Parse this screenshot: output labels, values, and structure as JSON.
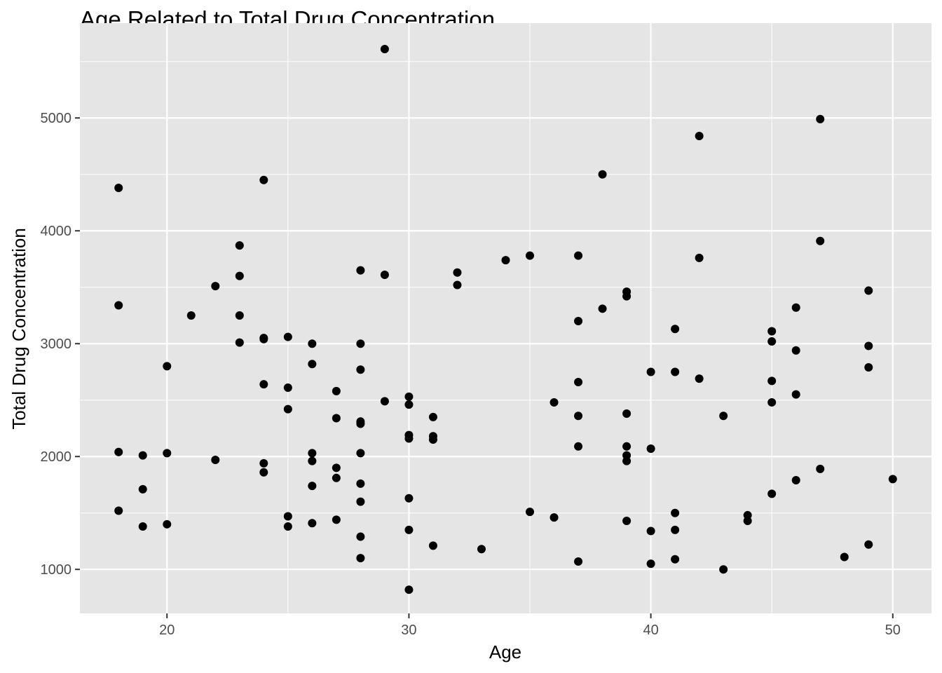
{
  "chart_data": {
    "type": "scatter",
    "title": "Age Related to Total Drug Concentration",
    "xlabel": "Age",
    "ylabel": "Total Drug Concentration",
    "xlim": [
      16.4,
      51.6
    ],
    "ylim": [
      610,
      5840
    ],
    "x_major_ticks": [
      20,
      30,
      40,
      50
    ],
    "y_major_ticks": [
      1000,
      2000,
      3000,
      4000,
      5000
    ],
    "x_minor_ticks": [
      25,
      35,
      45
    ],
    "y_minor_ticks": [
      1500,
      2500,
      3500,
      4500,
      5500
    ],
    "grid": true,
    "legend": "none",
    "colors": {
      "panel": "#e5e5e5",
      "grid": "#ffffff",
      "point": "#000000",
      "tick_text": "#4d4d4d",
      "tick_mark": "#333333"
    },
    "points": [
      {
        "x": 18,
        "y": 4380
      },
      {
        "x": 18,
        "y": 3340
      },
      {
        "x": 18,
        "y": 2040
      },
      {
        "x": 18,
        "y": 1520
      },
      {
        "x": 19,
        "y": 2010
      },
      {
        "x": 19,
        "y": 1710
      },
      {
        "x": 19,
        "y": 1380
      },
      {
        "x": 20,
        "y": 2800
      },
      {
        "x": 20,
        "y": 2030
      },
      {
        "x": 20,
        "y": 1400
      },
      {
        "x": 21,
        "y": 3250
      },
      {
        "x": 22,
        "y": 3510
      },
      {
        "x": 22,
        "y": 1970
      },
      {
        "x": 23,
        "y": 3870
      },
      {
        "x": 23,
        "y": 3600
      },
      {
        "x": 23,
        "y": 3250
      },
      {
        "x": 23,
        "y": 3010
      },
      {
        "x": 24,
        "y": 4450
      },
      {
        "x": 24,
        "y": 3050
      },
      {
        "x": 24,
        "y": 3040
      },
      {
        "x": 24,
        "y": 2640
      },
      {
        "x": 24,
        "y": 1940
      },
      {
        "x": 24,
        "y": 1860
      },
      {
        "x": 25,
        "y": 3060
      },
      {
        "x": 25,
        "y": 2610
      },
      {
        "x": 25,
        "y": 2420
      },
      {
        "x": 25,
        "y": 1470
      },
      {
        "x": 25,
        "y": 1380
      },
      {
        "x": 26,
        "y": 3000
      },
      {
        "x": 26,
        "y": 2820
      },
      {
        "x": 26,
        "y": 2030
      },
      {
        "x": 26,
        "y": 1960
      },
      {
        "x": 26,
        "y": 1740
      },
      {
        "x": 26,
        "y": 1410
      },
      {
        "x": 27,
        "y": 2580
      },
      {
        "x": 27,
        "y": 2340
      },
      {
        "x": 27,
        "y": 1900
      },
      {
        "x": 27,
        "y": 1810
      },
      {
        "x": 27,
        "y": 1440
      },
      {
        "x": 28,
        "y": 3650
      },
      {
        "x": 28,
        "y": 3000
      },
      {
        "x": 28,
        "y": 2770
      },
      {
        "x": 28,
        "y": 2310
      },
      {
        "x": 28,
        "y": 2290
      },
      {
        "x": 28,
        "y": 2030
      },
      {
        "x": 28,
        "y": 1760
      },
      {
        "x": 28,
        "y": 1600
      },
      {
        "x": 28,
        "y": 1290
      },
      {
        "x": 28,
        "y": 1100
      },
      {
        "x": 29,
        "y": 5610
      },
      {
        "x": 29,
        "y": 3610
      },
      {
        "x": 29,
        "y": 2490
      },
      {
        "x": 30,
        "y": 2530
      },
      {
        "x": 30,
        "y": 2460
      },
      {
        "x": 30,
        "y": 2190
      },
      {
        "x": 30,
        "y": 2160
      },
      {
        "x": 30,
        "y": 1630
      },
      {
        "x": 30,
        "y": 1350
      },
      {
        "x": 30,
        "y": 820
      },
      {
        "x": 31,
        "y": 2350
      },
      {
        "x": 31,
        "y": 2180
      },
      {
        "x": 31,
        "y": 2150
      },
      {
        "x": 31,
        "y": 1210
      },
      {
        "x": 32,
        "y": 3630
      },
      {
        "x": 32,
        "y": 3520
      },
      {
        "x": 33,
        "y": 1180
      },
      {
        "x": 34,
        "y": 3740
      },
      {
        "x": 35,
        "y": 3780
      },
      {
        "x": 35,
        "y": 1510
      },
      {
        "x": 36,
        "y": 2480
      },
      {
        "x": 36,
        "y": 1460
      },
      {
        "x": 37,
        "y": 3780
      },
      {
        "x": 37,
        "y": 3200
      },
      {
        "x": 37,
        "y": 2660
      },
      {
        "x": 37,
        "y": 2360
      },
      {
        "x": 37,
        "y": 2090
      },
      {
        "x": 37,
        "y": 1070
      },
      {
        "x": 38,
        "y": 4500
      },
      {
        "x": 38,
        "y": 3310
      },
      {
        "x": 39,
        "y": 3460
      },
      {
        "x": 39,
        "y": 3420
      },
      {
        "x": 39,
        "y": 2380
      },
      {
        "x": 39,
        "y": 2090
      },
      {
        "x": 39,
        "y": 2010
      },
      {
        "x": 39,
        "y": 1960
      },
      {
        "x": 39,
        "y": 1430
      },
      {
        "x": 40,
        "y": 2750
      },
      {
        "x": 40,
        "y": 2070
      },
      {
        "x": 40,
        "y": 1340
      },
      {
        "x": 40,
        "y": 1050
      },
      {
        "x": 41,
        "y": 3130
      },
      {
        "x": 41,
        "y": 2750
      },
      {
        "x": 41,
        "y": 1500
      },
      {
        "x": 41,
        "y": 1350
      },
      {
        "x": 41,
        "y": 1090
      },
      {
        "x": 42,
        "y": 4840
      },
      {
        "x": 42,
        "y": 3760
      },
      {
        "x": 42,
        "y": 2690
      },
      {
        "x": 43,
        "y": 2360
      },
      {
        "x": 43,
        "y": 1000
      },
      {
        "x": 44,
        "y": 1480
      },
      {
        "x": 44,
        "y": 1430
      },
      {
        "x": 45,
        "y": 3110
      },
      {
        "x": 45,
        "y": 3020
      },
      {
        "x": 45,
        "y": 2670
      },
      {
        "x": 45,
        "y": 2480
      },
      {
        "x": 45,
        "y": 1670
      },
      {
        "x": 46,
        "y": 3320
      },
      {
        "x": 46,
        "y": 2940
      },
      {
        "x": 46,
        "y": 2550
      },
      {
        "x": 46,
        "y": 1790
      },
      {
        "x": 47,
        "y": 4990
      },
      {
        "x": 47,
        "y": 3910
      },
      {
        "x": 47,
        "y": 1890
      },
      {
        "x": 48,
        "y": 1110
      },
      {
        "x": 49,
        "y": 3470
      },
      {
        "x": 49,
        "y": 2980
      },
      {
        "x": 49,
        "y": 2790
      },
      {
        "x": 49,
        "y": 1220
      },
      {
        "x": 50,
        "y": 1800
      }
    ]
  }
}
